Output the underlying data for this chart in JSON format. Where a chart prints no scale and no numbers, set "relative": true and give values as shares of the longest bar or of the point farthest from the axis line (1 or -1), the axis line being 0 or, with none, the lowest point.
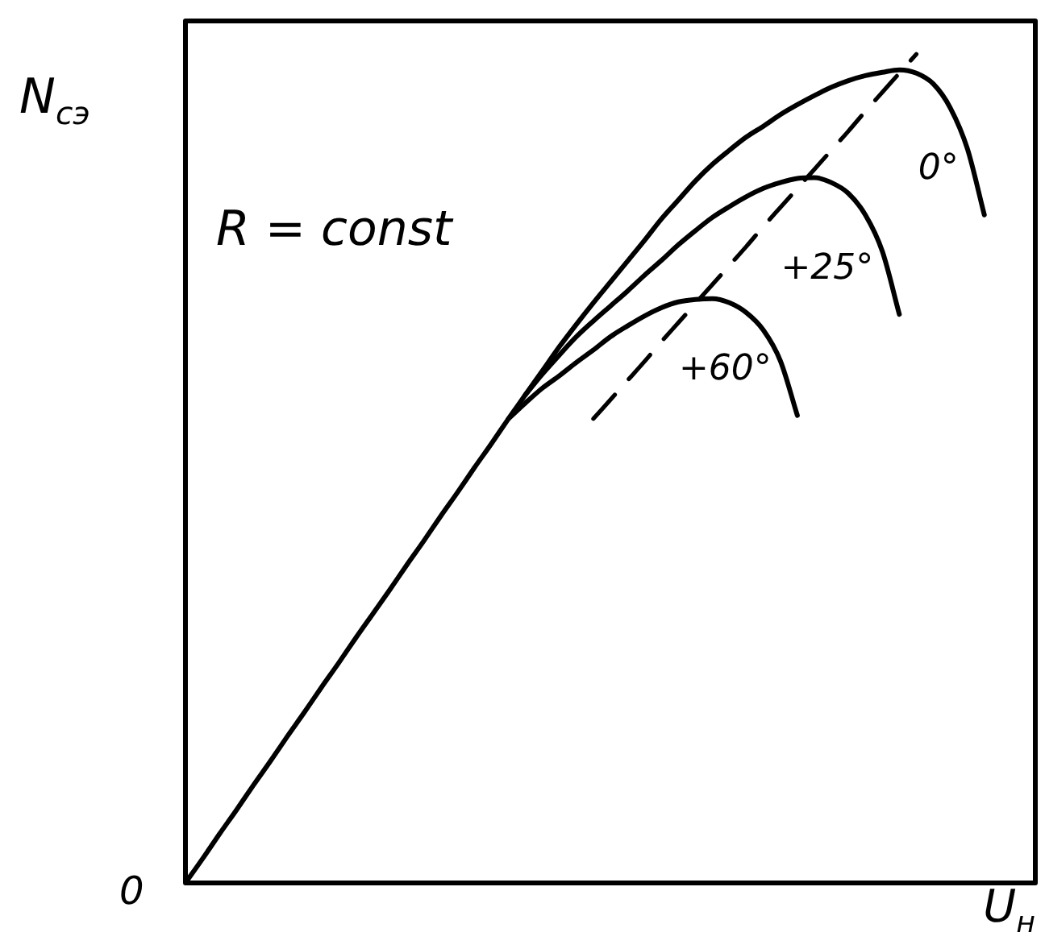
{
  "chart_data": {
    "type": "line",
    "relative": true,
    "xlabel": "U$_{н}$",
    "ylabel": "N$_{сэ}$",
    "annotations": [
      "R = const",
      "0"
    ],
    "marker": "none",
    "legend": false,
    "categories": [
      null,
      null,
      null,
      null,
      null,
      null,
      null,
      null,
      null,
      null,
      null,
      null,
      null,
      null,
      null,
      null,
      null,
      null,
      null,
      null,
      null,
      null,
      null,
      null,
      null,
      null,
      null,
      null,
      null,
      null,
      null,
      null,
      null,
      null,
      null,
      null,
      null,
      null,
      null,
      null,
      null,
      null,
      null,
      null,
      null,
      null,
      null,
      null,
      null,
      null,
      null
    ],
    "series": [
      {
        "name": "0°",
        "color": "#000000",
        "values": [
          0,
          0.029,
          0.059,
          0.088,
          0.118,
          0.147,
          0.177,
          0.206,
          0.236,
          0.265,
          0.295,
          0.324,
          0.353,
          0.383,
          0.412,
          0.442,
          0.471,
          0.501,
          0.53,
          0.56,
          0.589,
          0.618,
          0.647,
          0.674,
          0.7,
          0.725,
          0.75,
          0.775,
          0.801,
          0.824,
          0.847,
          0.867,
          0.884,
          0.9,
          0.913,
          0.927,
          0.939,
          0.95,
          0.96,
          0.968,
          0.974,
          0.978,
          0.981,
          0.977,
          0.964,
          0.935,
          0.886,
          0.806,
          null,
          null,
          null
        ]
      },
      {
        "name": "+25°",
        "color": "#000000",
        "values": [
          null,
          null,
          null,
          null,
          null,
          null,
          null,
          null,
          null,
          null,
          null,
          null,
          null,
          null,
          null,
          null,
          null,
          null,
          null,
          null,
          0.589,
          0.614,
          0.637,
          0.659,
          0.678,
          0.696,
          0.714,
          0.733,
          0.751,
          0.77,
          0.787,
          0.803,
          0.816,
          0.828,
          0.838,
          0.845,
          0.85,
          0.851,
          0.845,
          0.832,
          0.806,
          0.762,
          0.686,
          null,
          null,
          null,
          null,
          null,
          null,
          null,
          null
        ]
      },
      {
        "name": "+60°",
        "color": "#000000",
        "values": [
          null,
          null,
          null,
          null,
          null,
          null,
          null,
          null,
          null,
          null,
          null,
          null,
          null,
          null,
          null,
          null,
          null,
          null,
          null,
          0.56,
          0.579,
          0.597,
          0.612,
          0.628,
          0.643,
          0.659,
          0.672,
          0.684,
          0.694,
          0.701,
          0.704,
          0.705,
          0.7,
          0.688,
          0.667,
          0.63,
          0.564,
          null,
          null,
          null,
          null,
          null,
          null,
          null,
          null,
          null,
          null,
          null,
          null,
          null,
          null
        ]
      },
      {
        "color": "#000000",
        "line_style": "dashed",
        "values": [
          null,
          null,
          null,
          null,
          null,
          null,
          null,
          null,
          null,
          null,
          null,
          null,
          null,
          null,
          null,
          null,
          null,
          null,
          null,
          null,
          null,
          null,
          null,
          null,
          0.56,
          0.583,
          0.606,
          0.629,
          0.653,
          0.676,
          0.699,
          0.722,
          0.745,
          0.768,
          0.792,
          0.815,
          0.838,
          0.861,
          0.884,
          0.907,
          0.931,
          0.954,
          0.977,
          1,
          null,
          null,
          null,
          null,
          null,
          null,
          null
        ]
      }
    ]
  }
}
